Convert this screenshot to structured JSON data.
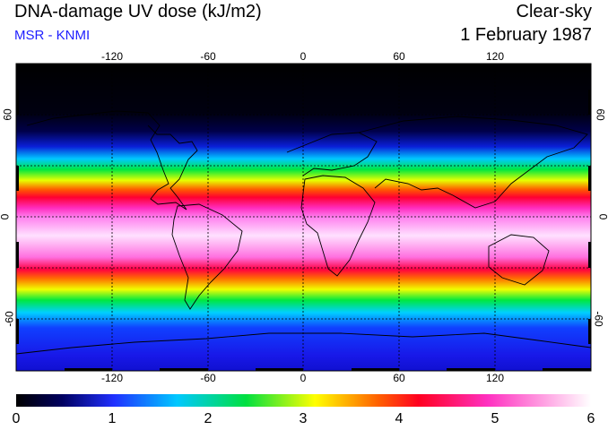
{
  "header": {
    "title": "DNA-damage UV dose (kJ/m2)",
    "source": "MSR - KNMI",
    "condition": "Clear-sky",
    "date": "1 February 1987"
  },
  "colors": {
    "source_text": "#1f1fff",
    "land_outline": "#000000",
    "grid": "#000000"
  },
  "axes": {
    "longitude_ticks": [
      "-120",
      "-60",
      "0",
      "60",
      "120"
    ],
    "latitude_ticks": [
      "60",
      "0",
      "-60"
    ]
  },
  "colorbar": {
    "labels": [
      "0",
      "1",
      "2",
      "3",
      "4",
      "5",
      "6"
    ],
    "min": 0,
    "max": 6
  },
  "map_data": {
    "variable": "DNA-damage UV dose",
    "units": "kJ/m2",
    "longitude_range": [
      -180,
      180
    ],
    "latitude_range": [
      -90,
      90
    ],
    "zonal_profile": [
      {
        "lat": 90,
        "dose": 0.0
      },
      {
        "lat": 75,
        "dose": 0.05
      },
      {
        "lat": 60,
        "dose": 0.2
      },
      {
        "lat": 50,
        "dose": 0.9
      },
      {
        "lat": 42,
        "dose": 2.0
      },
      {
        "lat": 35,
        "dose": 3.0
      },
      {
        "lat": 28,
        "dose": 3.6
      },
      {
        "lat": 20,
        "dose": 4.3
      },
      {
        "lat": 10,
        "dose": 5.2
      },
      {
        "lat": 0,
        "dose": 5.6
      },
      {
        "lat": -10,
        "dose": 5.8
      },
      {
        "lat": -20,
        "dose": 5.5
      },
      {
        "lat": -30,
        "dose": 4.3
      },
      {
        "lat": -38,
        "dose": 3.2
      },
      {
        "lat": -45,
        "dose": 2.3
      },
      {
        "lat": -55,
        "dose": 1.6
      },
      {
        "lat": -65,
        "dose": 1.2
      },
      {
        "lat": -75,
        "dose": 1.0
      },
      {
        "lat": -90,
        "dose": 0.9
      }
    ]
  }
}
